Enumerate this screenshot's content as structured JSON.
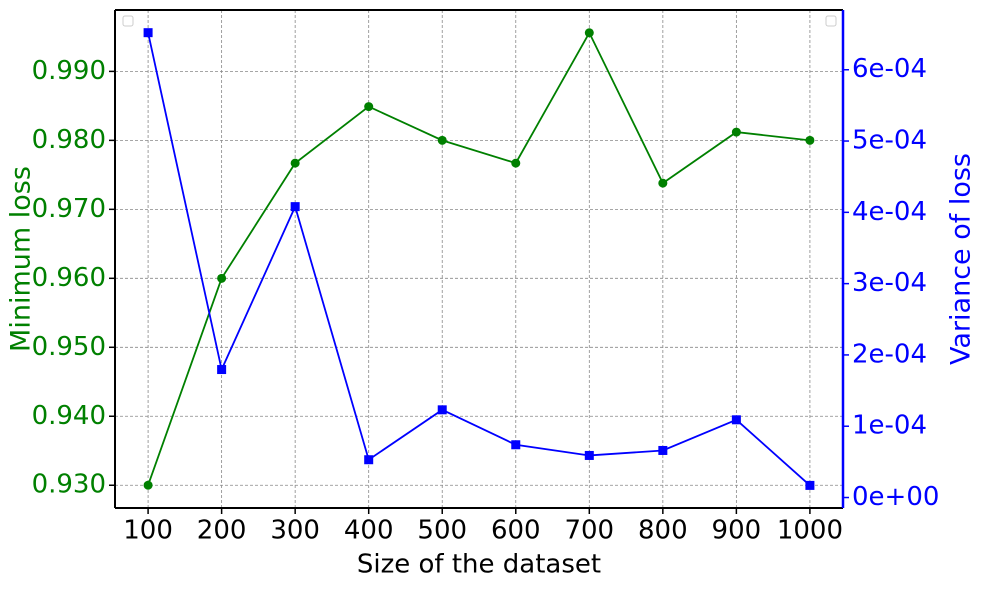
{
  "chart_data": {
    "type": "line",
    "xlabel": "Size of the dataset",
    "ylabel": "Minimum loss",
    "y2label": "Variance of loss",
    "x": [
      100,
      200,
      300,
      400,
      500,
      600,
      700,
      800,
      900,
      1000
    ],
    "series": [
      {
        "name": "Minimum loss",
        "color": "#008000",
        "marker": "circle",
        "axis": "y",
        "values": [
          0.93,
          0.96,
          0.9767,
          0.9849,
          0.98,
          0.9767,
          0.9956,
          0.9738,
          0.9812,
          0.98
        ]
      },
      {
        "name": "Variance of loss",
        "color": "#0000ff",
        "marker": "square",
        "axis": "y2",
        "values": [
          0.000652,
          0.0001795,
          0.000408,
          5.3e-05,
          0.000123,
          7.4e-05,
          5.9e-05,
          6.6e-05,
          0.000109,
          1.7e-05
        ]
      }
    ],
    "xlim": [
      55,
      1045
    ],
    "xticks": [
      100,
      200,
      300,
      400,
      500,
      600,
      700,
      800,
      900,
      1000
    ],
    "ylim": [
      0.9267,
      0.9989
    ],
    "yticks": [
      {
        "value": 0.93,
        "label": "0.930"
      },
      {
        "value": 0.94,
        "label": "0.940"
      },
      {
        "value": 0.95,
        "label": "0.950"
      },
      {
        "value": 0.96,
        "label": "0.960"
      },
      {
        "value": 0.97,
        "label": "0.970"
      },
      {
        "value": 0.98,
        "label": "0.980"
      },
      {
        "value": 0.99,
        "label": "0.990"
      }
    ],
    "y2lim": [
      -1.47e-05,
      0.0006838
    ],
    "y2ticks": [
      {
        "value": 0,
        "label": "0e+00"
      },
      {
        "value": 0.0001,
        "label": "1e-04"
      },
      {
        "value": 0.0002,
        "label": "2e-04"
      },
      {
        "value": 0.0003,
        "label": "3e-04"
      },
      {
        "value": 0.0004,
        "label": "4e-04"
      },
      {
        "value": 0.0005,
        "label": "5e-04"
      },
      {
        "value": 0.0006,
        "label": "6e-04"
      }
    ],
    "grid": true
  }
}
